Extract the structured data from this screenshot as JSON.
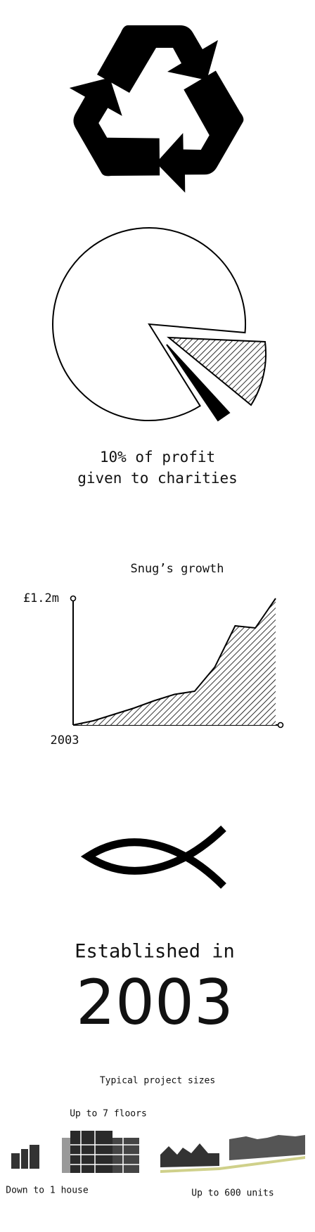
{
  "impact": {
    "line1": "10% of profit",
    "line2": "given to charities"
  },
  "chart_data": {
    "type": "area",
    "title": "Snug’s growth",
    "categories": [
      "2003",
      null,
      null,
      null,
      null,
      null,
      null,
      null,
      null,
      null,
      null
    ],
    "values": [
      0,
      0.04,
      0.1,
      0.16,
      0.23,
      0.29,
      0.32,
      0.55,
      0.94,
      0.92,
      1.2
    ],
    "ylim": [
      0,
      1.2
    ],
    "yticks": [
      {
        "value": 1.2,
        "label": "£1.2m"
      }
    ],
    "color": "#000000"
  },
  "established": {
    "label": "Established in",
    "year": "2003"
  },
  "projects": {
    "title": "Typical project sizes",
    "sizes": [
      "Up to 7 floors",
      "Down to 1 house",
      "Up to 600 units"
    ]
  }
}
